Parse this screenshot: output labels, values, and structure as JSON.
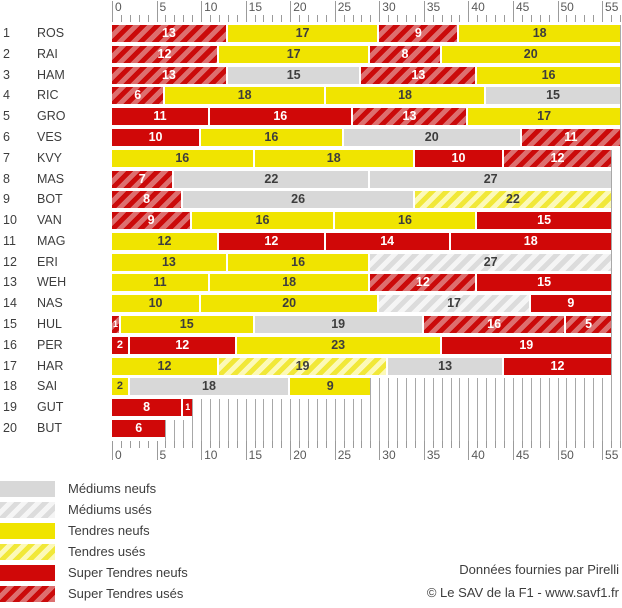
{
  "chart_data": {
    "type": "bar",
    "variant": "horizontal-stacked-stints",
    "title": "",
    "xlabel": "",
    "ylabel": "",
    "x_axis": {
      "min": 0,
      "max": 57,
      "major_step": 5,
      "minor_step": 1,
      "major_labels": [
        "0",
        "5",
        "10",
        "15",
        "20",
        "25",
        "30",
        "35",
        "40",
        "45",
        "50",
        "55"
      ],
      "shown_top_and_bottom": true
    },
    "grid": "vertical-per-lap",
    "legend_position": "bottom-left",
    "legend": [
      {
        "id": "m-new",
        "label": "Médiums neufs",
        "color": "#d8d8d8",
        "pattern": "solid"
      },
      {
        "id": "m-used",
        "label": "Médiums usés",
        "color": "#d8d8d8",
        "pattern": "hatched",
        "base_color": "#f5f5f5"
      },
      {
        "id": "s-new",
        "label": "Tendres neufs",
        "color": "#f0e400",
        "pattern": "solid"
      },
      {
        "id": "s-used",
        "label": "Tendres usés",
        "color": "#f1e838",
        "pattern": "hatched",
        "base_color": "#fcf9b8"
      },
      {
        "id": "ss-new",
        "label": "Super Tendres neufs",
        "color": "#d00808",
        "pattern": "solid"
      },
      {
        "id": "ss-used",
        "label": "Super Tendres usés",
        "color": "#cb0a0a",
        "pattern": "hatched",
        "base_color": "#dd6f6f"
      }
    ],
    "rows": [
      {
        "position": "1",
        "driver": "ROS",
        "stints": [
          {
            "laps": 13,
            "tyre": "ss-used"
          },
          {
            "laps": 17,
            "tyre": "s-new"
          },
          {
            "laps": 9,
            "tyre": "ss-used"
          },
          {
            "laps": 18,
            "tyre": "s-new"
          }
        ]
      },
      {
        "position": "2",
        "driver": "RAI",
        "stints": [
          {
            "laps": 12,
            "tyre": "ss-used"
          },
          {
            "laps": 17,
            "tyre": "s-new"
          },
          {
            "laps": 8,
            "tyre": "ss-used"
          },
          {
            "laps": 20,
            "tyre": "s-new"
          }
        ]
      },
      {
        "position": "3",
        "driver": "HAM",
        "stints": [
          {
            "laps": 13,
            "tyre": "ss-used"
          },
          {
            "laps": 15,
            "tyre": "m-new"
          },
          {
            "laps": 13,
            "tyre": "ss-used"
          },
          {
            "laps": 16,
            "tyre": "s-new"
          }
        ]
      },
      {
        "position": "4",
        "driver": "RIC",
        "stints": [
          {
            "laps": 6,
            "tyre": "ss-used"
          },
          {
            "laps": 18,
            "tyre": "s-new"
          },
          {
            "laps": 18,
            "tyre": "s-new"
          },
          {
            "laps": 15,
            "tyre": "m-new"
          }
        ]
      },
      {
        "position": "5",
        "driver": "GRO",
        "stints": [
          {
            "laps": 11,
            "tyre": "ss-new"
          },
          {
            "laps": 16,
            "tyre": "ss-new"
          },
          {
            "laps": 13,
            "tyre": "ss-used"
          },
          {
            "laps": 17,
            "tyre": "s-new"
          }
        ]
      },
      {
        "position": "6",
        "driver": "VES",
        "stints": [
          {
            "laps": 10,
            "tyre": "ss-new"
          },
          {
            "laps": 16,
            "tyre": "s-new"
          },
          {
            "laps": 20,
            "tyre": "m-new"
          },
          {
            "laps": 11,
            "tyre": "ss-used"
          }
        ]
      },
      {
        "position": "7",
        "driver": "KVY",
        "stints": [
          {
            "laps": 16,
            "tyre": "s-new"
          },
          {
            "laps": 18,
            "tyre": "s-new"
          },
          {
            "laps": 10,
            "tyre": "ss-new"
          },
          {
            "laps": 12,
            "tyre": "ss-used"
          }
        ]
      },
      {
        "position": "8",
        "driver": "MAS",
        "stints": [
          {
            "laps": 7,
            "tyre": "ss-used"
          },
          {
            "laps": 22,
            "tyre": "m-new"
          },
          {
            "laps": 27,
            "tyre": "m-new"
          }
        ]
      },
      {
        "position": "9",
        "driver": "BOT",
        "stints": [
          {
            "laps": 8,
            "tyre": "ss-used"
          },
          {
            "laps": 26,
            "tyre": "m-new"
          },
          {
            "laps": 22,
            "tyre": "s-used"
          }
        ]
      },
      {
        "position": "10",
        "driver": "VAN",
        "stints": [
          {
            "laps": 9,
            "tyre": "ss-used"
          },
          {
            "laps": 16,
            "tyre": "s-new"
          },
          {
            "laps": 16,
            "tyre": "s-new"
          },
          {
            "laps": 15,
            "tyre": "ss-new"
          }
        ]
      },
      {
        "position": "11",
        "driver": "MAG",
        "stints": [
          {
            "laps": 12,
            "tyre": "s-new"
          },
          {
            "laps": 12,
            "tyre": "ss-new"
          },
          {
            "laps": 14,
            "tyre": "ss-new"
          },
          {
            "laps": 18,
            "tyre": "ss-new"
          }
        ]
      },
      {
        "position": "12",
        "driver": "ERI",
        "stints": [
          {
            "laps": 13,
            "tyre": "s-new"
          },
          {
            "laps": 16,
            "tyre": "s-new"
          },
          {
            "laps": 27,
            "tyre": "m-used"
          }
        ]
      },
      {
        "position": "13",
        "driver": "WEH",
        "stints": [
          {
            "laps": 11,
            "tyre": "s-new"
          },
          {
            "laps": 18,
            "tyre": "s-new"
          },
          {
            "laps": 12,
            "tyre": "ss-used"
          },
          {
            "laps": 15,
            "tyre": "ss-new"
          }
        ]
      },
      {
        "position": "14",
        "driver": "NAS",
        "stints": [
          {
            "laps": 10,
            "tyre": "s-new"
          },
          {
            "laps": 20,
            "tyre": "s-new"
          },
          {
            "laps": 17,
            "tyre": "m-used"
          },
          {
            "laps": 9,
            "tyre": "ss-new"
          }
        ]
      },
      {
        "position": "15",
        "driver": "HUL",
        "stints": [
          {
            "laps": 1,
            "tyre": "ss-used"
          },
          {
            "laps": 15,
            "tyre": "s-new"
          },
          {
            "laps": 19,
            "tyre": "m-new"
          },
          {
            "laps": 16,
            "tyre": "ss-used"
          },
          {
            "laps": 5,
            "tyre": "ss-used"
          }
        ]
      },
      {
        "position": "16",
        "driver": "PER",
        "stints": [
          {
            "laps": 2,
            "tyre": "ss-new"
          },
          {
            "laps": 12,
            "tyre": "ss-new"
          },
          {
            "laps": 23,
            "tyre": "s-new"
          },
          {
            "laps": 19,
            "tyre": "ss-new"
          }
        ]
      },
      {
        "position": "17",
        "driver": "HAR",
        "stints": [
          {
            "laps": 12,
            "tyre": "s-new"
          },
          {
            "laps": 19,
            "tyre": "s-used"
          },
          {
            "laps": 13,
            "tyre": "m-new"
          },
          {
            "laps": 12,
            "tyre": "ss-new"
          }
        ]
      },
      {
        "position": "18",
        "driver": "SAI",
        "stints": [
          {
            "laps": 2,
            "tyre": "s-new"
          },
          {
            "laps": 18,
            "tyre": "m-new"
          },
          {
            "laps": 9,
            "tyre": "s-new"
          }
        ]
      },
      {
        "position": "19",
        "driver": "GUT",
        "stints": [
          {
            "laps": 8,
            "tyre": "ss-new"
          },
          {
            "laps": 1,
            "tyre": "ss-new"
          }
        ]
      },
      {
        "position": "20",
        "driver": "BUT",
        "stints": [
          {
            "laps": 6,
            "tyre": "ss-new"
          }
        ]
      }
    ]
  },
  "footer": {
    "source": "Données fournies par Pirelli",
    "copyright": "© Le SAV de la F1 - www.savf1.fr"
  },
  "colors": {
    "grid": "#a8a8a8",
    "tick": "#9b9b9b",
    "axis_text": "#595959",
    "label_text": "#3d3d3d",
    "bar_separator": "#ffffff"
  }
}
